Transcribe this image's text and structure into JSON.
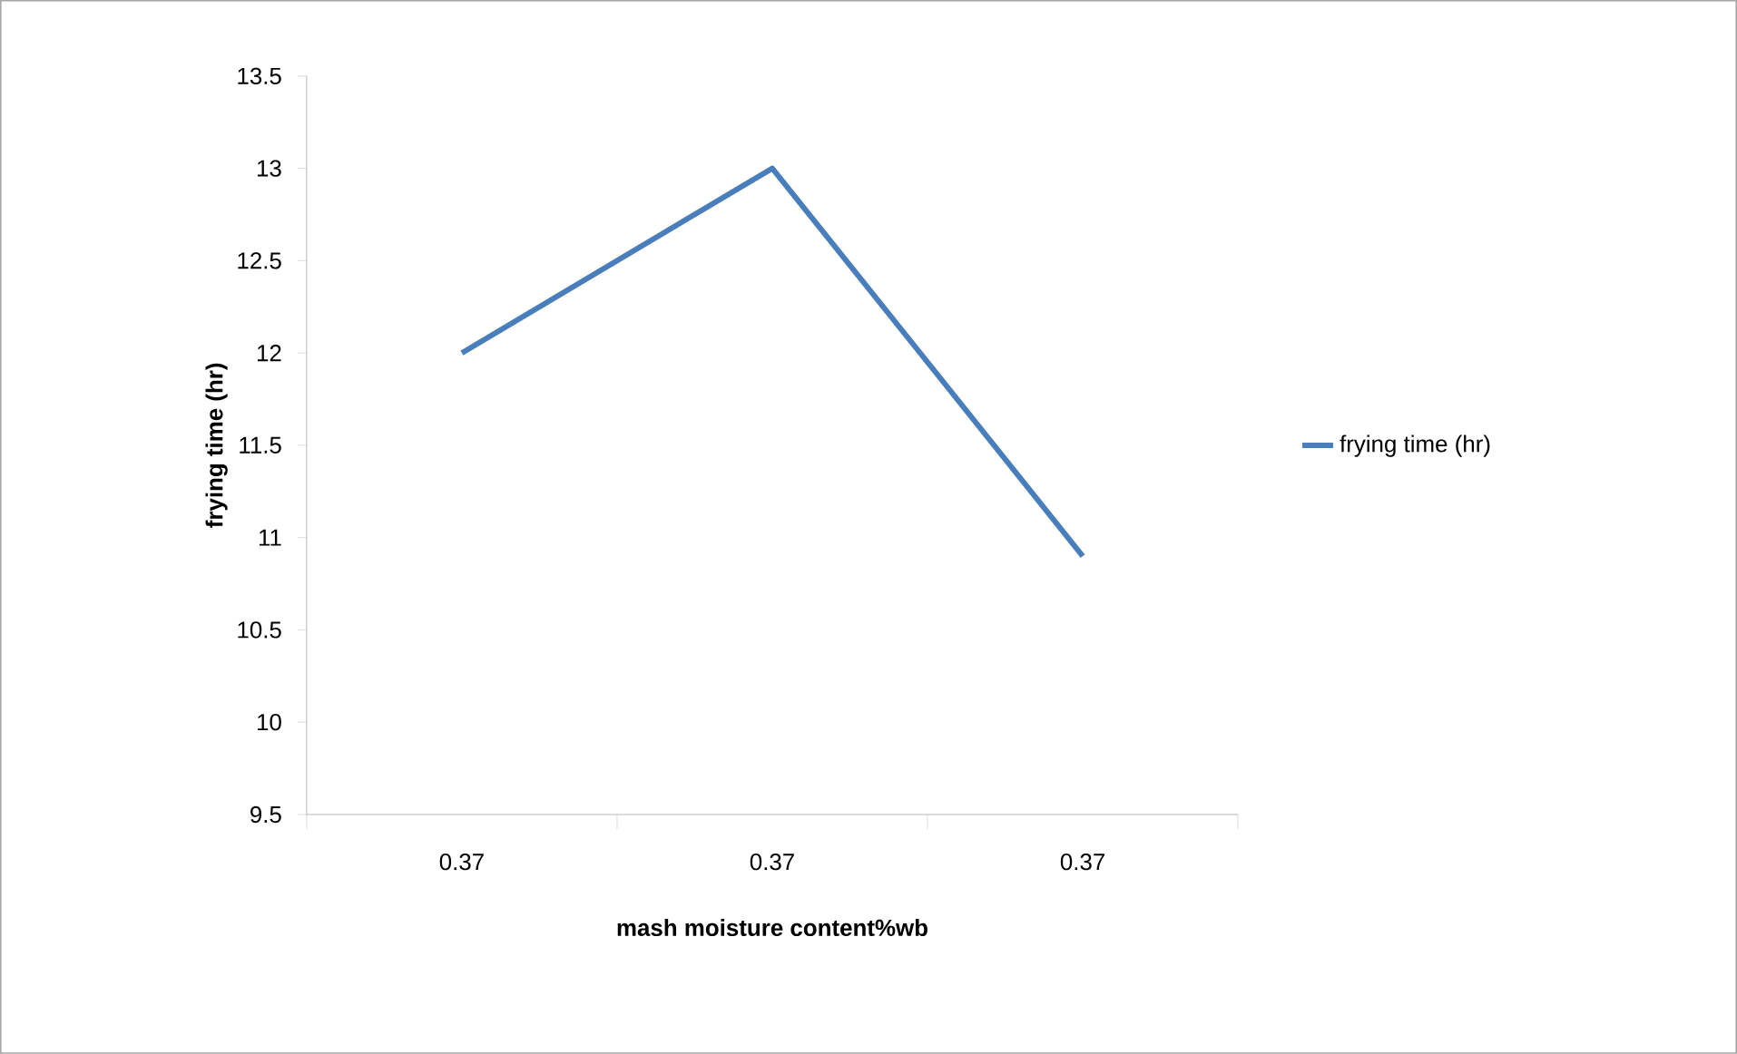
{
  "chart_data": {
    "type": "line",
    "xlabel": "mash moisture content%wb",
    "ylabel": "frying time (hr)",
    "categories": [
      "0.37",
      "0.37",
      "0.37"
    ],
    "series": [
      {
        "name": "frying time (hr)",
        "color": "#4a7ebb",
        "values": [
          12,
          13,
          10.9
        ]
      }
    ],
    "ylim": [
      9.5,
      13.5
    ],
    "yticks": [
      9.5,
      10,
      10.5,
      11,
      11.5,
      12,
      12.5,
      13,
      13.5
    ],
    "grid": false,
    "legend": "right",
    "marker": "none",
    "line_style": "solid"
  }
}
